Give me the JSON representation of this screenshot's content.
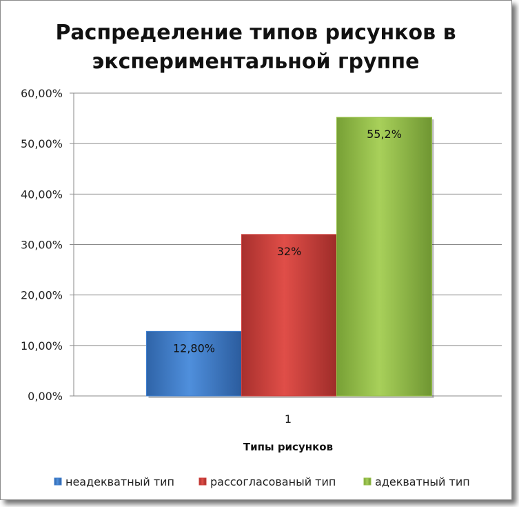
{
  "chart_data": {
    "type": "bar",
    "title_lines": [
      "Распределение типов рисунков в",
      "экспериментальной группе"
    ],
    "xlabel": "Типы рисунков",
    "ylabel": "",
    "categories": [
      "1"
    ],
    "ylim": [
      0,
      0.6
    ],
    "ytick_values": [
      0,
      0.1,
      0.2,
      0.3,
      0.4,
      0.5,
      0.6
    ],
    "ytick_labels": [
      "0,00%",
      "10,00%",
      "20,00%",
      "30,00%",
      "40,00%",
      "50,00%",
      "60,00%"
    ],
    "grid": true,
    "legend_position": "bottom",
    "series": [
      {
        "name": "неадекватный тип",
        "values": [
          0.128
        ],
        "data_label": "12,80%",
        "color": "#3f7fcf"
      },
      {
        "name": "рассогласованый тип",
        "values": [
          0.32
        ],
        "data_label": "32%",
        "color": "#d13f3b"
      },
      {
        "name": "адекватный тип",
        "values": [
          0.552
        ],
        "data_label": "55,2%",
        "color": "#98c14a"
      }
    ]
  }
}
